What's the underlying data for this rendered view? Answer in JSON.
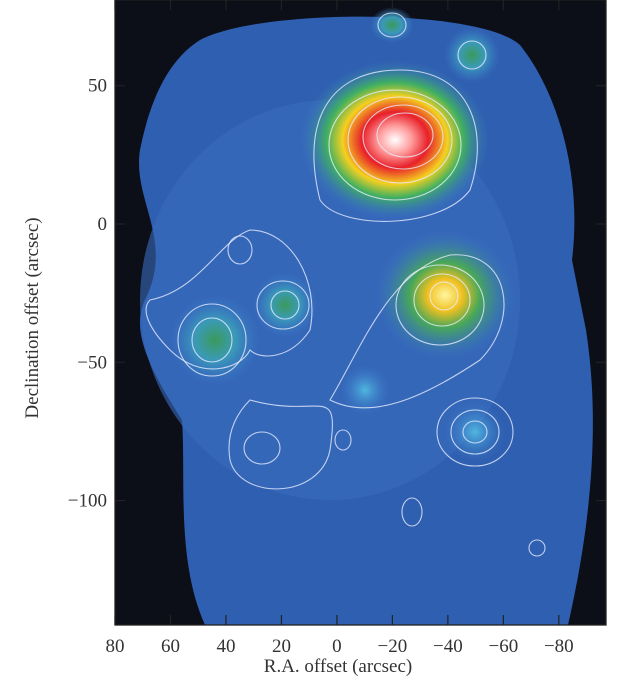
{
  "chart_data": {
    "type": "image-map",
    "xlabel": "R.A. offset (arcsec)",
    "ylabel": "Declination offset (arcsec)",
    "xlim": [
      80,
      -97
    ],
    "ylim": [
      -145,
      81
    ],
    "xticks": [
      80,
      60,
      40,
      20,
      0,
      {
        "value": -20,
        "label": "−20"
      },
      {
        "value": -40,
        "label": "−40"
      },
      {
        "value": -60,
        "label": "−60"
      },
      {
        "value": -80,
        "label": "−80"
      }
    ],
    "yticks": [
      {
        "value": -100,
        "label": "−100"
      },
      {
        "value": -50,
        "label": "−50"
      },
      0,
      50
    ]
  }
}
